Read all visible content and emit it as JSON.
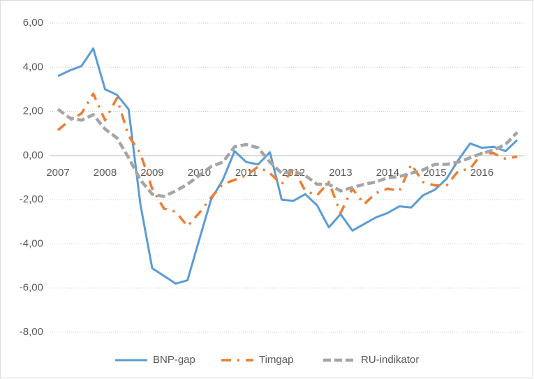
{
  "chart_data": {
    "type": "line",
    "categories": [
      "2007",
      null,
      null,
      null,
      "2008",
      null,
      null,
      null,
      "2009",
      null,
      null,
      null,
      "2010",
      null,
      null,
      null,
      "2011",
      null,
      null,
      null,
      "2012",
      null,
      null,
      null,
      "2013",
      null,
      null,
      null,
      "2014",
      null,
      null,
      null,
      "2015",
      null,
      null,
      null,
      "2016",
      null,
      null,
      null
    ],
    "series": [
      {
        "name": "BNP-gap",
        "color": "#5b9bd5",
        "values": [
          3.6,
          3.85,
          4.05,
          4.85,
          3.0,
          2.75,
          2.1,
          -2.2,
          -5.1,
          -5.45,
          -5.8,
          -5.65,
          -3.8,
          -2.0,
          -1.1,
          0.2,
          -0.3,
          -0.4,
          0.15,
          -2.0,
          -2.05,
          -1.75,
          -2.25,
          -3.25,
          -2.65,
          -3.4,
          -3.1,
          -2.8,
          -2.6,
          -2.3,
          -2.35,
          -1.8,
          -1.55,
          -1.05,
          -0.2,
          0.55,
          0.35,
          0.4,
          0.2,
          0.7
        ]
      },
      {
        "name": "Timgap",
        "color": "#ed7d31",
        "values": [
          1.15,
          1.6,
          1.9,
          2.8,
          1.6,
          2.6,
          0.9,
          0.1,
          -1.5,
          -2.4,
          -2.55,
          -3.2,
          -2.6,
          -1.9,
          -1.3,
          -1.1,
          -0.9,
          -0.5,
          -0.8,
          -1.3,
          -0.6,
          -1.6,
          -1.8,
          -1.2,
          -2.6,
          -1.5,
          -2.2,
          -1.7,
          -1.5,
          -1.6,
          -0.4,
          -1.2,
          -1.35,
          -1.35,
          -0.7,
          -0.6,
          0.1,
          0.1,
          -0.15,
          -0.05
        ]
      },
      {
        "name": "RU-indikator",
        "color": "#a5a5a5",
        "values": [
          2.1,
          1.7,
          1.6,
          1.85,
          1.2,
          0.8,
          -0.1,
          -1.1,
          -1.75,
          -1.85,
          -1.6,
          -1.3,
          -0.9,
          -0.5,
          -0.3,
          0.4,
          0.5,
          0.35,
          -0.3,
          -0.8,
          -0.7,
          -0.9,
          -1.3,
          -1.3,
          -1.6,
          -1.45,
          -1.3,
          -1.2,
          -1.0,
          -0.95,
          -0.8,
          -0.65,
          -0.4,
          -0.4,
          -0.3,
          -0.1,
          0.1,
          0.25,
          0.5,
          1.05
        ]
      }
    ],
    "ylim": [
      -8,
      6
    ],
    "yticks": [
      {
        "value": -8,
        "label": "-8,00"
      },
      {
        "value": -6,
        "label": "-6,00"
      },
      {
        "value": -4,
        "label": "-4,00"
      },
      {
        "value": -2,
        "label": "-2,00"
      },
      {
        "value": 0,
        "label": "0,00"
      },
      {
        "value": 2,
        "label": "2,00"
      },
      {
        "value": 4,
        "label": "4,00"
      },
      {
        "value": 6,
        "label": "6,00"
      }
    ],
    "grid": true,
    "legend": "bottom"
  }
}
